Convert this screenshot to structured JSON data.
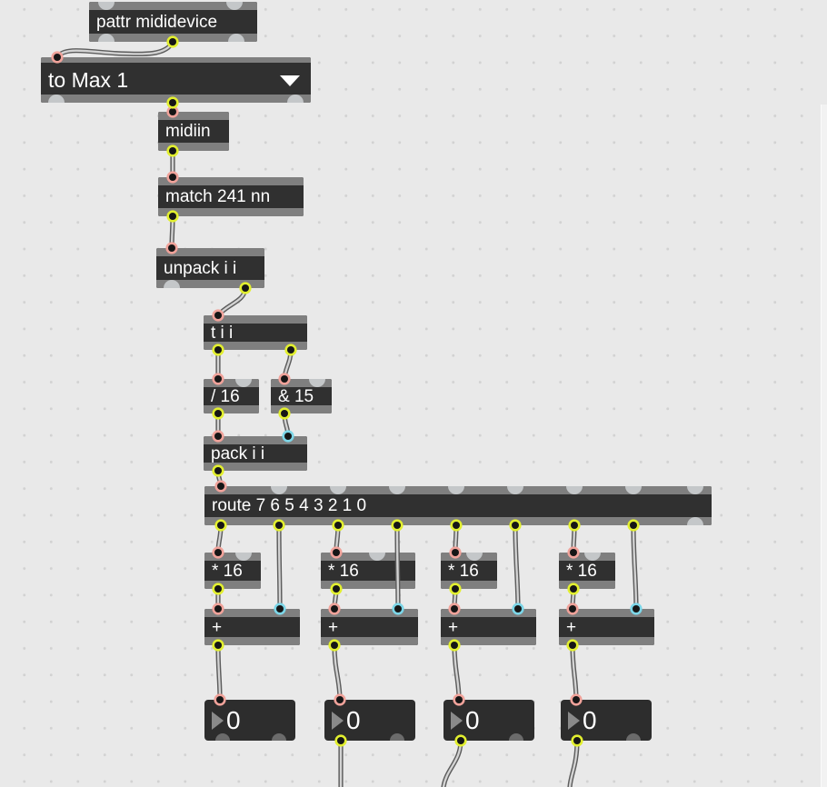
{
  "patcher": {
    "boxes": {
      "pattr": {
        "label": "pattr mididevice"
      },
      "umenu": {
        "label": "to Max 1"
      },
      "midiin": {
        "label": "midiin"
      },
      "match": {
        "label": "match 241 nn"
      },
      "unpack": {
        "label": "unpack i i"
      },
      "trigger": {
        "label": "t i i"
      },
      "div16": {
        "label": "/ 16"
      },
      "and15": {
        "label": "& 15"
      },
      "pack": {
        "label": "pack i i"
      },
      "route": {
        "label": "route 7 6 5 4 3 2 1 0"
      },
      "mul1": {
        "label": "* 16"
      },
      "mul2": {
        "label": "* 16"
      },
      "mul3": {
        "label": "* 16"
      },
      "mul4": {
        "label": "* 16"
      },
      "add1": {
        "label": "+"
      },
      "add2": {
        "label": "+"
      },
      "add3": {
        "label": "+"
      },
      "add4": {
        "label": "+"
      },
      "num1": {
        "value": "0"
      },
      "num2": {
        "value": "0"
      },
      "num3": {
        "value": "0"
      },
      "num4": {
        "value": "0"
      }
    },
    "icons": {
      "umenu_arrow": "dropdown-triangle",
      "numbox_arrow": "number-drag-triangle"
    },
    "colors": {
      "canvas": "#e9e9e9",
      "box_body": "#303030",
      "box_bar": "#7f7f7f",
      "hot_inlet_ring": "#f0a29a",
      "cold_inlet_ring": "#7cd6e8",
      "outlet_ring": "#e2ef2f",
      "unused_port": "#c4c7c9",
      "cord_core": "#d4d4d4",
      "cord_edge": "#5d5d5d",
      "text": "#ffffff"
    }
  }
}
